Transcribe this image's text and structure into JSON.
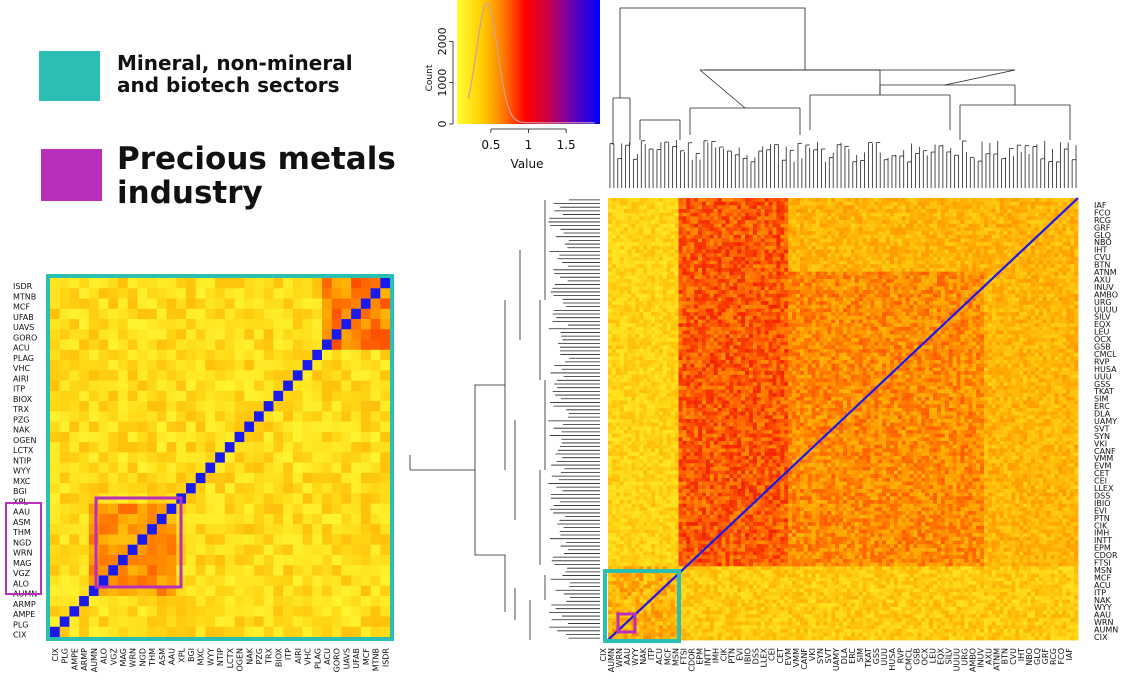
{
  "legend": {
    "items": [
      {
        "label_line1": "Mineral, non-mineral",
        "label_line2": "and biotech sectors",
        "color": "#2bbfb3"
      },
      {
        "label_line1": "Precious metals",
        "label_line2": "industry",
        "color": "#b92fb9"
      }
    ]
  },
  "colors": {
    "teal": "#2bbfb3",
    "purple": "#b92fb9",
    "diagonal": "#1a1aee"
  },
  "chart_data": [
    {
      "type": "histogram",
      "title": "",
      "xlabel": "Value",
      "ylabel": "Count",
      "x_ticks": [
        "0.5",
        "1",
        "1.5"
      ],
      "y_ticks": [
        "0",
        "1000",
        "2000"
      ],
      "xlim": [
        0.05,
        1.95
      ],
      "ylim": [
        0,
        3000
      ],
      "colorscale": [
        "#ffff33",
        "#ffcc00",
        "#ff6600",
        "#ff0000",
        "#cc0055",
        "#5500cc",
        "#0000ff"
      ]
    },
    {
      "type": "heatmap",
      "title": "",
      "row_labels": [
        "IAF",
        "FCO",
        "RCG",
        "GRF",
        "GLQ",
        "NBO",
        "IHT",
        "CVU",
        "BTN",
        "ATNM",
        "AXU",
        "INUV",
        "AMBO",
        "URG",
        "UUUU",
        "SILV",
        "EQX",
        "LEU",
        "OCX",
        "GSB",
        "CMCL",
        "RVP",
        "HUSA",
        "UUU",
        "GSS",
        "TKAT",
        "SIM",
        "ERC",
        "DLA",
        "UAMY",
        "SVT",
        "SYN",
        "VKI",
        "CANF",
        "VMM",
        "EVM",
        "CET",
        "CEI",
        "LLEX",
        "DSS",
        "IBIO",
        "EVI",
        "PTN",
        "CIK",
        "IMH",
        "INTT",
        "EPM",
        "CDOR",
        "FTSI",
        "MSN",
        "MCF",
        "ACU",
        "ITP",
        "NAK",
        "WYY",
        "AAU",
        "WRN",
        "AUMN",
        "CIX"
      ],
      "col_labels": [
        "CIX",
        "AUMN",
        "WRN",
        "AAU",
        "WYY",
        "NAK",
        "ITP",
        "ACU",
        "MCF",
        "MSN",
        "FTSI",
        "CDOR",
        "EPM",
        "INTT",
        "IMH",
        "CIK",
        "PTN",
        "EVI",
        "IBIO",
        "DSS",
        "LLEX",
        "CEI",
        "CET",
        "EVM",
        "VMM",
        "CANF",
        "VKI",
        "SYN",
        "SVT",
        "UAMY",
        "DLA",
        "ERC",
        "SIM",
        "TKAT",
        "GSS",
        "UUU",
        "HUSA",
        "RVP",
        "CMCL",
        "GSB",
        "OCX",
        "LEU",
        "EQX",
        "SILV",
        "UUUU",
        "URG",
        "AMBO",
        "INUV",
        "AXU",
        "ATNM",
        "BTN",
        "CVU",
        "IHT",
        "NBO",
        "GLQ",
        "GRF",
        "RCG",
        "FCO",
        "IAF"
      ]
    },
    {
      "type": "heatmap",
      "title": "",
      "row_labels": [
        "ISDR",
        "MTNB",
        "MCF",
        "UFAB",
        "UAVS",
        "GORO",
        "ACU",
        "PLAG",
        "VHC",
        "AIRI",
        "ITP",
        "BIOX",
        "TRX",
        "PZG",
        "NAK",
        "OGEN",
        "LCTX",
        "NTIP",
        "WYY",
        "MXC",
        "BGI",
        "XPL",
        "AAU",
        "ASM",
        "THM",
        "NGD",
        "WRN",
        "MAG",
        "VGZ",
        "ALO",
        "AUMN",
        "ARMP",
        "AMPE",
        "PLG",
        "CIX"
      ],
      "col_labels": [
        "CIX",
        "PLG",
        "AMPE",
        "ARMP",
        "AUMN",
        "ALO",
        "VGZ",
        "MAG",
        "WRN",
        "NGD",
        "THM",
        "ASM",
        "AAU",
        "XPL",
        "BGI",
        "MXC",
        "WYY",
        "NTIP",
        "LCTX",
        "OGEN",
        "NAK",
        "PZG",
        "TRX",
        "BIOX",
        "ITP",
        "AIRI",
        "VHC",
        "PLAG",
        "ACU",
        "GORO",
        "UAVS",
        "UFAB",
        "MCF",
        "MTNB",
        "ISDR"
      ]
    }
  ]
}
